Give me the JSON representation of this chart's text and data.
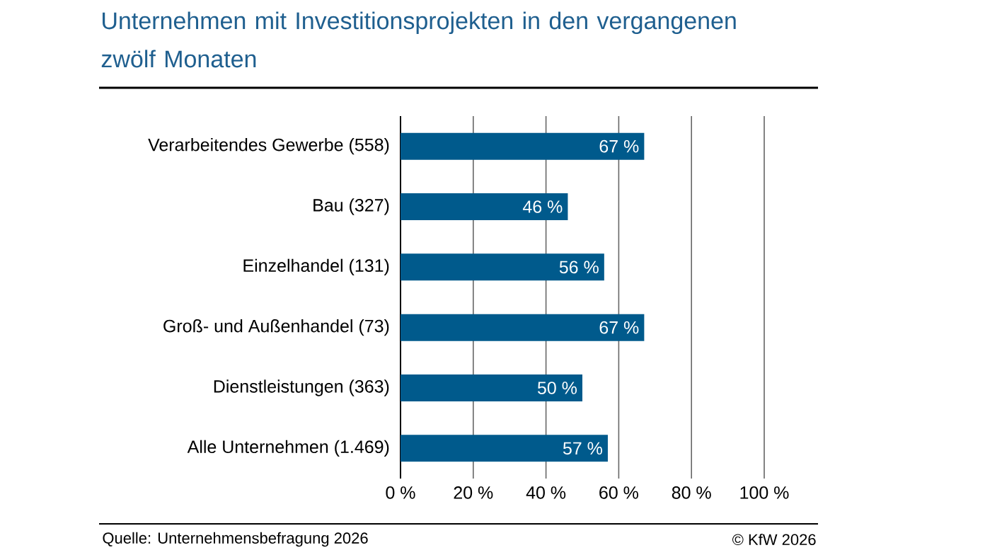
{
  "chart_data": {
    "type": "bar",
    "orientation": "horizontal",
    "title": "Unternehmen mit Investitionsprojekten in den vergangenen zwölf Monaten",
    "categories": [
      "Verarbeitendes Gewerbe (558)",
      "Bau (327)",
      "Einzelhandel (131)",
      "Groß- und Außenhandel (73)",
      "Dienstleistungen (363)",
      "Alle Unternehmen (1.469)"
    ],
    "values": [
      67,
      46,
      56,
      67,
      50,
      57
    ],
    "value_labels": [
      "67 %",
      "46 %",
      "56 %",
      "67 %",
      "50 %",
      "57 %"
    ],
    "color": "#005a8c",
    "xlim": [
      0,
      100
    ],
    "xticks": [
      {
        "value": 0,
        "label": "0 %"
      },
      {
        "value": 20,
        "label": "20 %"
      },
      {
        "value": 40,
        "label": "40 %"
      },
      {
        "value": 60,
        "label": "60 %"
      },
      {
        "value": 80,
        "label": "80 %"
      },
      {
        "value": 100,
        "label": "100 %"
      }
    ],
    "grid": "x",
    "annotations": [
      "Quelle: Unternehmensbefragung 2026",
      "© KfW 2026"
    ]
  }
}
